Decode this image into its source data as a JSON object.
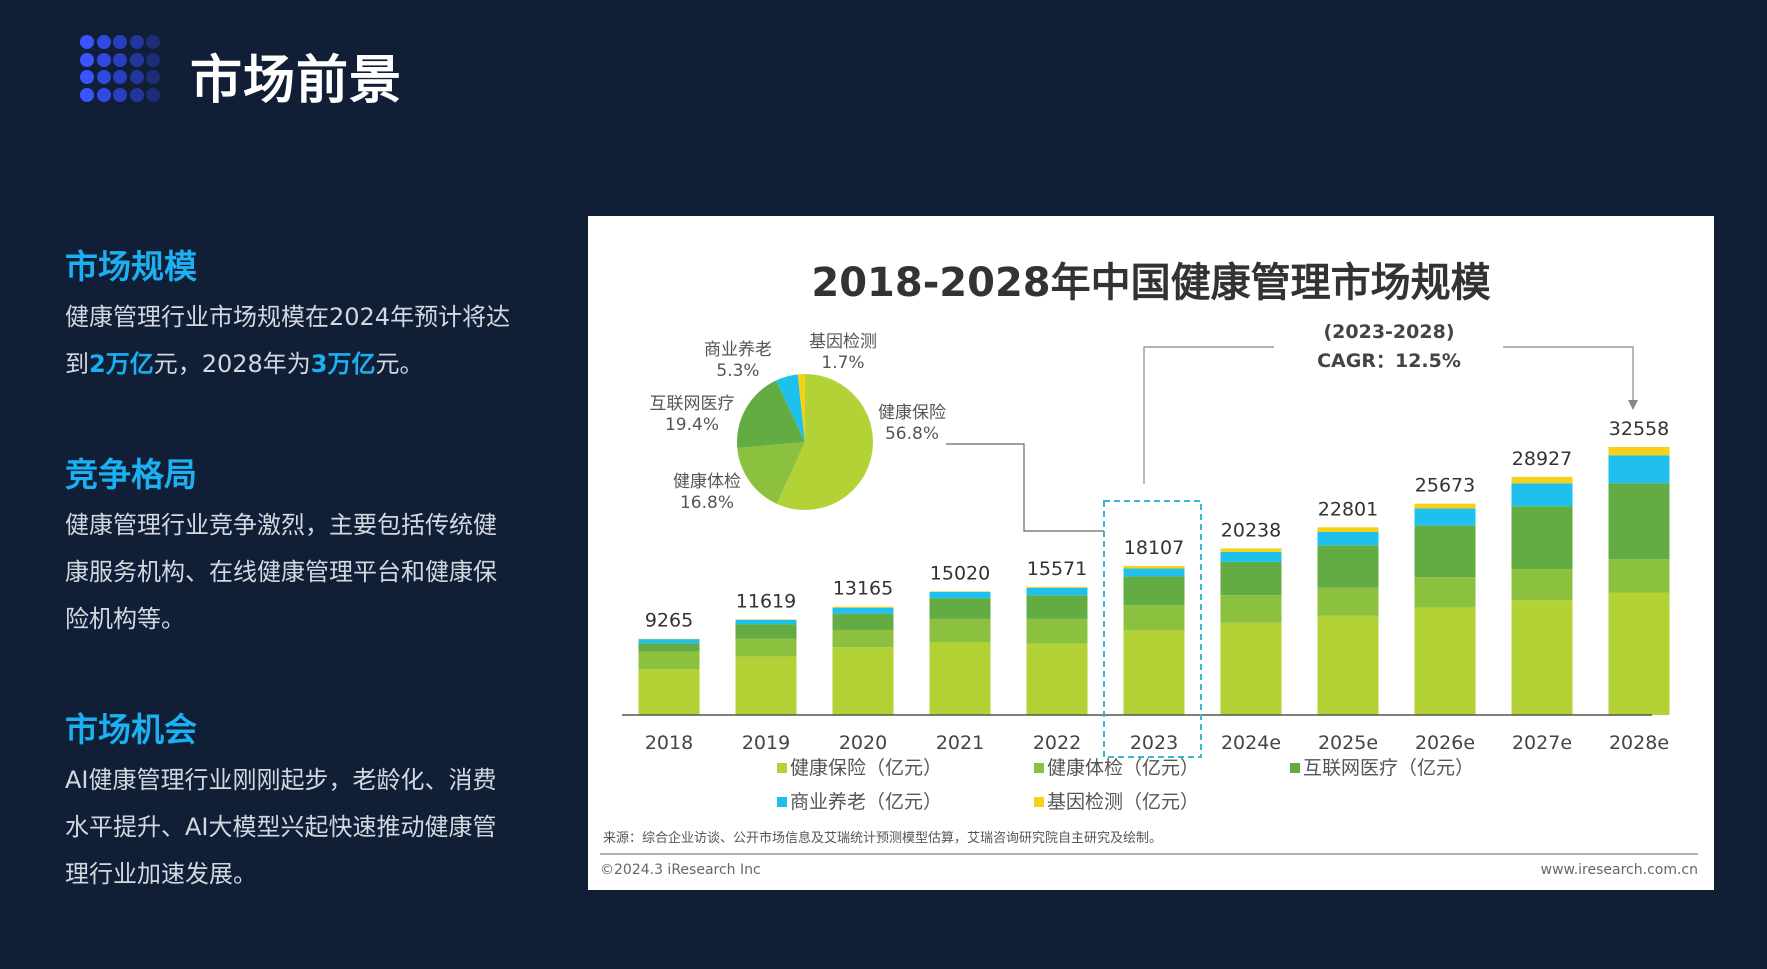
{
  "header": {
    "title": "市场前景",
    "dots_color": "#3355ff"
  },
  "sections": [
    {
      "heading": "市场规模",
      "text_parts": [
        "健康管理行业市场规模在2024年预计将达到",
        "2万亿",
        "元，2028年为",
        "3万亿",
        "元。"
      ]
    },
    {
      "heading": "竞争格局",
      "text": "健康管理行业竞争激烈，主要包括传统健康服务机构、在线健康管理平台和健康保险机构等。"
    },
    {
      "heading": "市场机会",
      "text": "AI健康管理行业刚刚起步，老龄化、消费水平提升、AI大模型兴起快速推动健康管理行业加速发展。"
    }
  ],
  "accent_color": "#1ab0f2",
  "chart_data": [
    {
      "type": "bar",
      "stacked": true,
      "title": "2018-2028年中国健康管理市场规模",
      "categories": [
        "2018",
        "2019",
        "2020",
        "2021",
        "2022",
        "2023",
        "2024e",
        "2025e",
        "2026e",
        "2027e",
        "2028e"
      ],
      "totals": [
        9265,
        11619,
        13165,
        15020,
        15571,
        18107,
        20238,
        22801,
        25673,
        28927,
        32558
      ],
      "series": [
        {
          "name": "健康保险（亿元）",
          "color": "#b2d235",
          "values": [
            5559,
            7088,
            8228,
            8817,
            8657,
            10285,
            11212,
            12085,
            13068,
            13943,
            14879
          ]
        },
        {
          "name": "健康体检（亿元）",
          "color": "#8cc13f",
          "values": [
            2131,
            2208,
            2106,
            2854,
            3021,
            3042,
            3339,
            3375,
            3671,
            3789,
            4037
          ]
        },
        {
          "name": "互联网医疗（亿元）",
          "color": "#63ac43",
          "values": [
            1019,
            1743,
            1975,
            2523,
            2865,
            3513,
            4048,
            5153,
            6264,
            7637,
            9246
          ]
        },
        {
          "name": "商业养老（亿元）",
          "color": "#1fc0ee",
          "values": [
            510,
            523,
            724,
            781,
            903,
            960,
            1214,
            1619,
            2080,
            2777,
            3386
          ]
        },
        {
          "name": "基因检测（亿元）",
          "color": "#f7d117",
          "values": [
            46,
            57,
            132,
            45,
            125,
            307,
            425,
            569,
            590,
            781,
            1010
          ]
        }
      ],
      "highlight_category": "2023",
      "annotation": {
        "line1": "(2023-2028)",
        "line2": "CAGR：12.5%"
      },
      "legend": "bottom",
      "grid": false,
      "source": "来源：综合企业访谈、公开市场信息及艾瑞统计预测模型估算，艾瑞咨询研究院自主研究及绘制。",
      "copyright": "©2024.3 iResearch Inc",
      "website": "www.iresearch.com.cn"
    },
    {
      "type": "pie",
      "category": "2023",
      "slices": [
        {
          "name": "健康保险",
          "value": 56.8,
          "label": "56.8%",
          "color": "#b2d235"
        },
        {
          "name": "健康体检",
          "value": 16.8,
          "label": "16.8%",
          "color": "#8cc13f"
        },
        {
          "name": "互联网医疗",
          "value": 19.4,
          "label": "19.4%",
          "color": "#63ac43"
        },
        {
          "name": "商业养老",
          "value": 5.3,
          "label": "5.3%",
          "color": "#1fc0ee"
        },
        {
          "name": "基因检测",
          "value": 1.7,
          "label": "1.7%",
          "color": "#f7d117"
        }
      ]
    }
  ]
}
